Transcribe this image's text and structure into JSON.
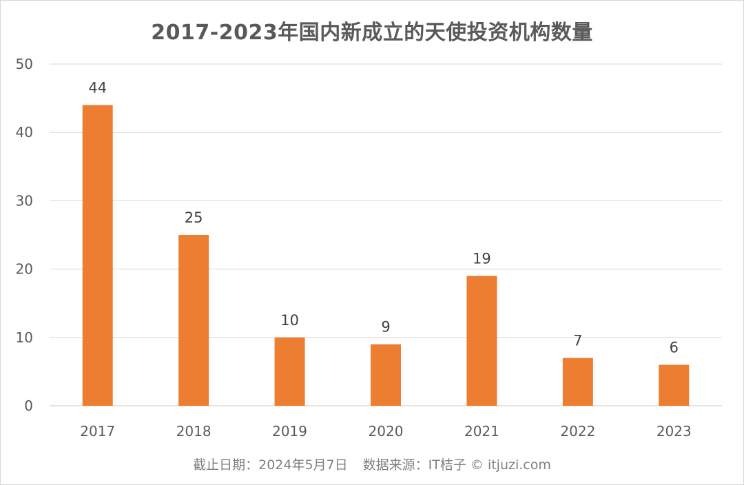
{
  "chart_data": {
    "type": "bar",
    "title": "2017-2023年国内新成立的天使投资机构数量",
    "categories": [
      "2017",
      "2018",
      "2019",
      "2020",
      "2021",
      "2022",
      "2023"
    ],
    "values": [
      44,
      25,
      10,
      9,
      19,
      7,
      6
    ],
    "ylim": [
      0,
      50
    ],
    "yticks": [
      0,
      10,
      20,
      30,
      40,
      50
    ],
    "grid": true,
    "bar_color": "#ED7D31",
    "data_labels": true
  },
  "footer": {
    "date_text": "截止日期：2024年5月7日",
    "source_text": "数据来源：IT桔子 © itjuzi.com"
  }
}
